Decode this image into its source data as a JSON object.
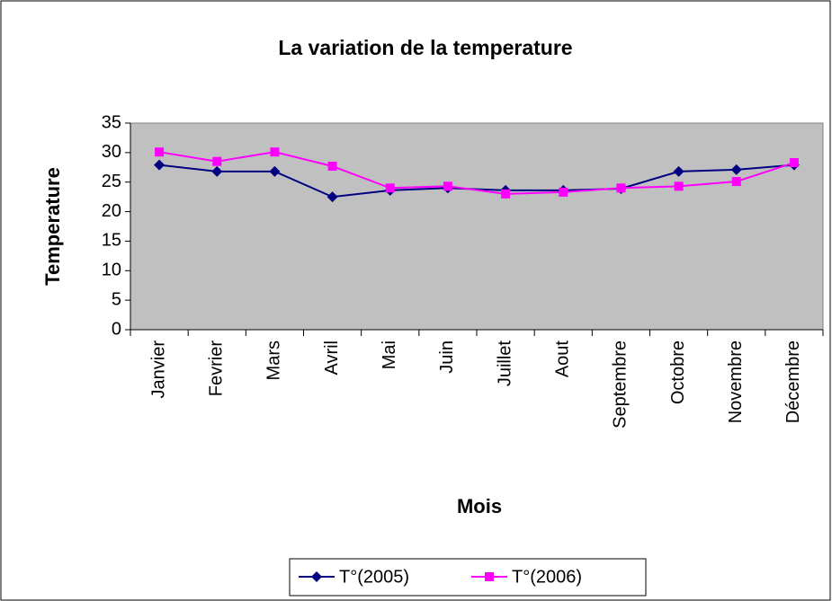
{
  "chart_data": {
    "type": "line",
    "title": "La variation de la temperature",
    "x_label": "Mois",
    "y_label": "Temperature",
    "categories": [
      "Janvier",
      "Fevrier",
      "Mars",
      "Avril",
      "Mai",
      "Juin",
      "Juillet",
      "Aout",
      "Septembre",
      "Octobre",
      "Novembre",
      "Décembre"
    ],
    "series": [
      {
        "name": "T°(2005)",
        "color": "#000080",
        "marker": "diamond",
        "values": [
          27.9,
          26.8,
          26.8,
          22.5,
          23.6,
          24.0,
          23.6,
          23.6,
          23.9,
          26.8,
          27.1,
          27.9
        ]
      },
      {
        "name": "T°(2006)",
        "color": "#FF00FF",
        "marker": "square",
        "values": [
          30.1,
          28.5,
          30.1,
          27.7,
          24.0,
          24.3,
          23.0,
          23.3,
          24.0,
          24.3,
          25.1,
          28.3
        ]
      }
    ],
    "ylim": [
      0,
      35
    ],
    "yticks": [
      0,
      5,
      10,
      15,
      20,
      25,
      30,
      35
    ],
    "plot_background": "#C0C0C0",
    "legend": "bottom"
  }
}
